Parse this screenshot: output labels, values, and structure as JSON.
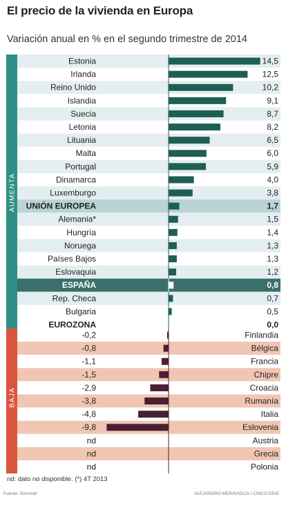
{
  "header": {
    "title": "El precio de la vivienda en Europa",
    "subtitle": "Variación anual en % en el segundo trimestre de 2014"
  },
  "footer": {
    "note": "nd: dato no disponible. (*) 4T 2013",
    "source": "Fuente: Eurostat",
    "credit": "ALEJANDRO MERAVIGLIA / CINCO DÍAS"
  },
  "colors": {
    "increase_bar": "#1f5e54",
    "decrease_bar": "#4a1f33",
    "increase_band": "#2f8f84",
    "increase_row_fill": "#e4eef0",
    "decrease_band": "#d9563c",
    "decrease_row_fill": "#f0c6b3",
    "highlight_row": "#b9d3d6",
    "spain_row": "#3a6f6b",
    "background": "#ffffff"
  },
  "chart_data": {
    "type": "bar",
    "orientation": "horizontal",
    "title": "El precio de la vivienda en Europa",
    "subtitle": "Variación anual en % en el segundo trimestre de 2014",
    "groups": [
      {
        "label": "AUMENTA",
        "rows": [
          {
            "country": "Estonia",
            "value": 14.5,
            "label": "14,5"
          },
          {
            "country": "Irlanda",
            "value": 12.5,
            "label": "12,5"
          },
          {
            "country": "Reino Unido",
            "value": 10.2,
            "label": "10,2"
          },
          {
            "country": "Islandia",
            "value": 9.1,
            "label": "9,1"
          },
          {
            "country": "Suecia",
            "value": 8.7,
            "label": "8,7"
          },
          {
            "country": "Letonia",
            "value": 8.2,
            "label": "8,2"
          },
          {
            "country": "Lituania",
            "value": 6.5,
            "label": "6,5"
          },
          {
            "country": "Malta",
            "value": 6.0,
            "label": "6,0"
          },
          {
            "country": "Portugal",
            "value": 5.9,
            "label": "5,9"
          },
          {
            "country": "Dinamarca",
            "value": 4.0,
            "label": "4,0"
          },
          {
            "country": "Luxemburgo",
            "value": 3.8,
            "label": "3,8"
          },
          {
            "country": "UNIÓN EUROPEA",
            "value": 1.7,
            "label": "1,7",
            "style": "highlight"
          },
          {
            "country": "Alemania*",
            "value": 1.5,
            "label": "1,5"
          },
          {
            "country": "Hungría",
            "value": 1.4,
            "label": "1,4"
          },
          {
            "country": "Noruega",
            "value": 1.3,
            "label": "1,3"
          },
          {
            "country": "Países Bajos",
            "value": 1.3,
            "label": "1,3"
          },
          {
            "country": "Eslovaquia",
            "value": 1.2,
            "label": "1,2"
          },
          {
            "country": "ESPAÑA",
            "value": 0.8,
            "label": "0,8",
            "style": "spain"
          },
          {
            "country": "Rep. Checa",
            "value": 0.7,
            "label": "0,7"
          },
          {
            "country": "Bulgaria",
            "value": 0.5,
            "label": "0,5"
          },
          {
            "country": "EUROZONA",
            "value": 0.0,
            "label": "0,0",
            "style": "eurozone"
          }
        ]
      },
      {
        "label": "BAJA",
        "rows": [
          {
            "country": "Finlandia",
            "value": -0.2,
            "label": "-0,2"
          },
          {
            "country": "Bélgica",
            "value": -0.8,
            "label": "-0,8"
          },
          {
            "country": "Francia",
            "value": -1.1,
            "label": "-1,1"
          },
          {
            "country": "Chipre",
            "value": -1.5,
            "label": "-1,5"
          },
          {
            "country": "Croacia",
            "value": -2.9,
            "label": "-2,9"
          },
          {
            "country": "Rumanía",
            "value": -3.8,
            "label": "-3,8"
          },
          {
            "country": "Italia",
            "value": -4.8,
            "label": "-4,8"
          },
          {
            "country": "Eslovenia",
            "value": -9.8,
            "label": "-9,8"
          },
          {
            "country": "Austria",
            "value": null,
            "label": "nd"
          },
          {
            "country": "Grecia",
            "value": null,
            "label": "nd"
          },
          {
            "country": "Polonia",
            "value": null,
            "label": "nd"
          }
        ]
      }
    ]
  }
}
